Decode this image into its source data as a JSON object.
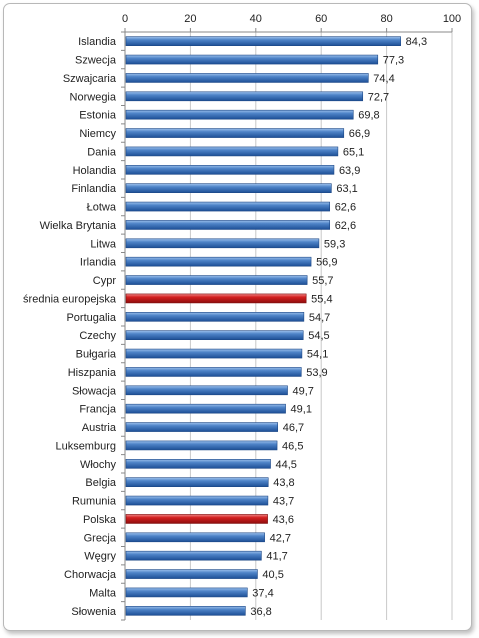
{
  "chart_data": {
    "type": "bar",
    "orientation": "horizontal",
    "title": "",
    "xlabel": "",
    "ylabel": "",
    "xlim": [
      0,
      100
    ],
    "x_ticks": [
      "0",
      "20",
      "40",
      "60",
      "80",
      "100"
    ],
    "x_tick_values": [
      0,
      20,
      40,
      60,
      80,
      100
    ],
    "grid": true,
    "legend": "none",
    "colors": {
      "default": "#3a6fb5",
      "highlight": "#d42020"
    },
    "categories": [
      "Islandia",
      "Szwecja",
      "Szwajcaria",
      "Norwegia",
      "Estonia",
      "Niemcy",
      "Dania",
      "Holandia",
      "Finlandia",
      "Łotwa",
      "Wielka Brytania",
      "Litwa",
      "Irlandia",
      "Cypr",
      "średnia europejska",
      "Portugalia",
      "Czechy",
      "Bułgaria",
      "Hiszpania",
      "Słowacja",
      "Francja",
      "Austria",
      "Luksemburg",
      "Włochy",
      "Belgia",
      "Rumunia",
      "Polska",
      "Grecja",
      "Węgry",
      "Chorwacja",
      "Malta",
      "Słowenia"
    ],
    "values": [
      84.3,
      77.3,
      74.4,
      72.7,
      69.8,
      66.9,
      65.1,
      63.9,
      63.1,
      62.6,
      62.6,
      59.3,
      56.9,
      55.7,
      55.4,
      54.7,
      54.5,
      54.1,
      53.9,
      49.7,
      49.1,
      46.7,
      46.5,
      44.5,
      43.8,
      43.7,
      43.6,
      42.7,
      41.7,
      40.5,
      37.4,
      36.8
    ],
    "value_labels": [
      "84,3",
      "77,3",
      "74,4",
      "72,7",
      "69,8",
      "66,9",
      "65,1",
      "63,9",
      "63,1",
      "62,6",
      "62,6",
      "59,3",
      "56,9",
      "55,7",
      "55,4",
      "54,7",
      "54,5",
      "54,1",
      "53,9",
      "49,7",
      "49,1",
      "46,7",
      "46,5",
      "44,5",
      "43,8",
      "43,7",
      "43,6",
      "42,7",
      "41,7",
      "40,5",
      "37,4",
      "36,8"
    ],
    "highlighted": [
      "średnia europejska",
      "Polska"
    ]
  }
}
